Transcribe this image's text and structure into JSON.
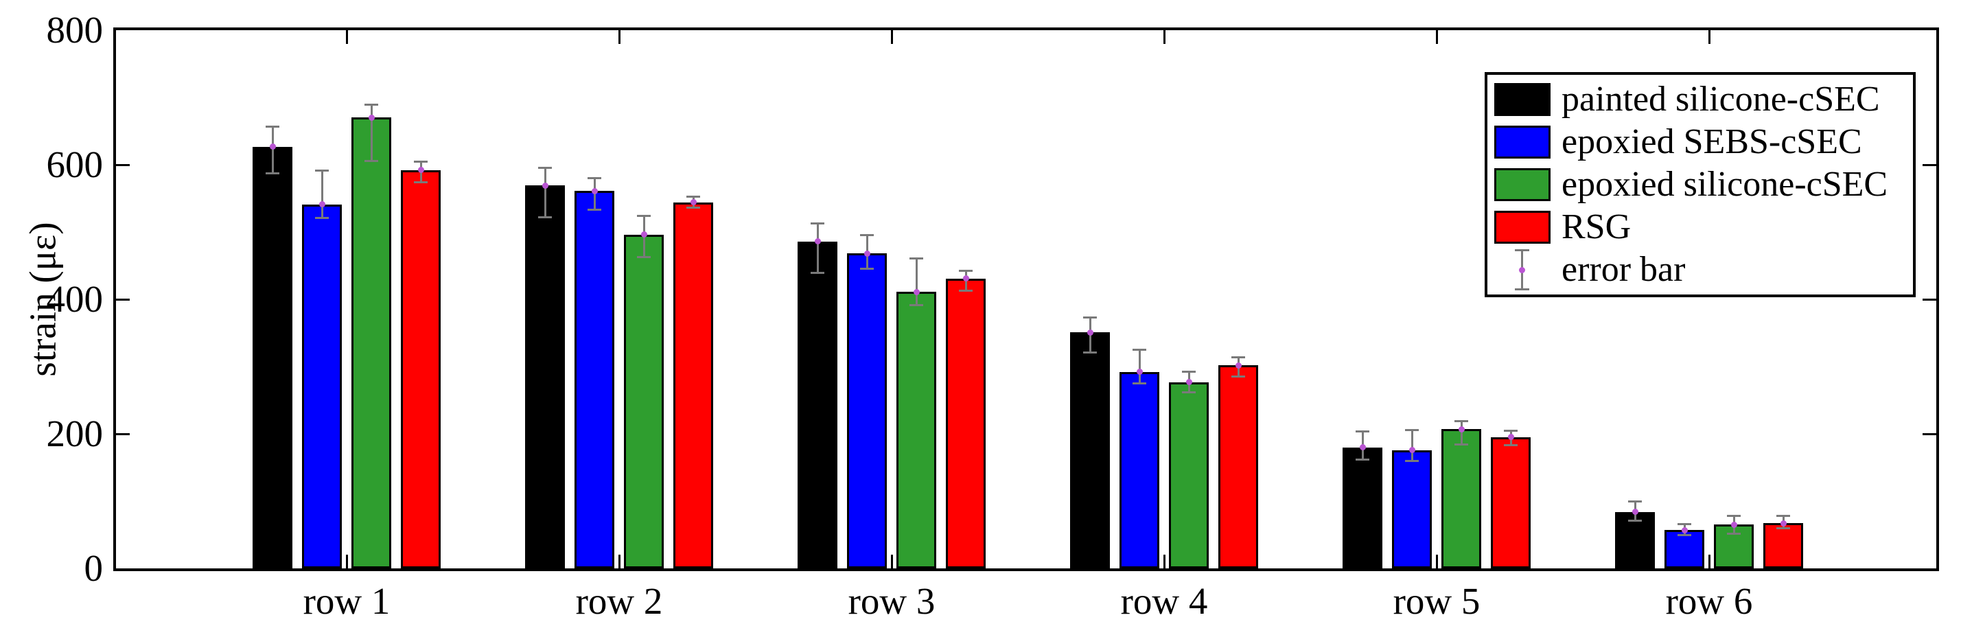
{
  "figure": {
    "ylabel": "strain (με)",
    "background": "#ffffff",
    "axis_color": "#000000"
  },
  "chart_data": {
    "type": "bar",
    "categories": [
      "row 1",
      "row 2",
      "row 3",
      "row 4",
      "row 5",
      "row 6"
    ],
    "series": [
      {
        "name": "painted silicone-cSEC",
        "color": "#000000",
        "values": [
          627,
          569,
          486,
          351,
          180,
          84
        ],
        "err_up": [
          30,
          26,
          27,
          22,
          24,
          15
        ],
        "err_down": [
          40,
          47,
          47,
          30,
          18,
          13
        ]
      },
      {
        "name": "epoxied SEBS-cSEC",
        "color": "#0000ff",
        "values": [
          541,
          561,
          468,
          292,
          176,
          57
        ],
        "err_up": [
          50,
          19,
          27,
          33,
          30,
          9
        ],
        "err_down": [
          20,
          28,
          23,
          17,
          16,
          8
        ]
      },
      {
        "name": "epoxied silicone-cSEC",
        "color": "#2f9e2f",
        "values": [
          670,
          496,
          411,
          277,
          207,
          65
        ],
        "err_up": [
          19,
          28,
          50,
          15,
          12,
          13
        ],
        "err_down": [
          64,
          33,
          20,
          15,
          23,
          13
        ]
      },
      {
        "name": "RSG",
        "color": "#ff0000",
        "values": [
          592,
          544,
          431,
          302,
          195,
          67
        ],
        "err_up": [
          13,
          9,
          11,
          12,
          10,
          11
        ],
        "err_down": [
          18,
          8,
          18,
          17,
          12,
          7
        ]
      }
    ],
    "title": "",
    "xlabel": "",
    "ylabel": "strain (με)",
    "ylim": [
      0,
      800
    ],
    "yticks": [
      0,
      200,
      400,
      600,
      800
    ],
    "grid": false,
    "legend": {
      "position": "top-right",
      "entries": [
        "painted silicone-cSEC",
        "epoxied SEBS-cSEC",
        "epoxied silicone-cSEC",
        "RSG",
        "error bar"
      ],
      "error_bar_entry": "error bar"
    },
    "error_bar_style": {
      "line_color": "#7a7a7a",
      "marker_color": "#BA55D3",
      "marker": "dot"
    }
  }
}
